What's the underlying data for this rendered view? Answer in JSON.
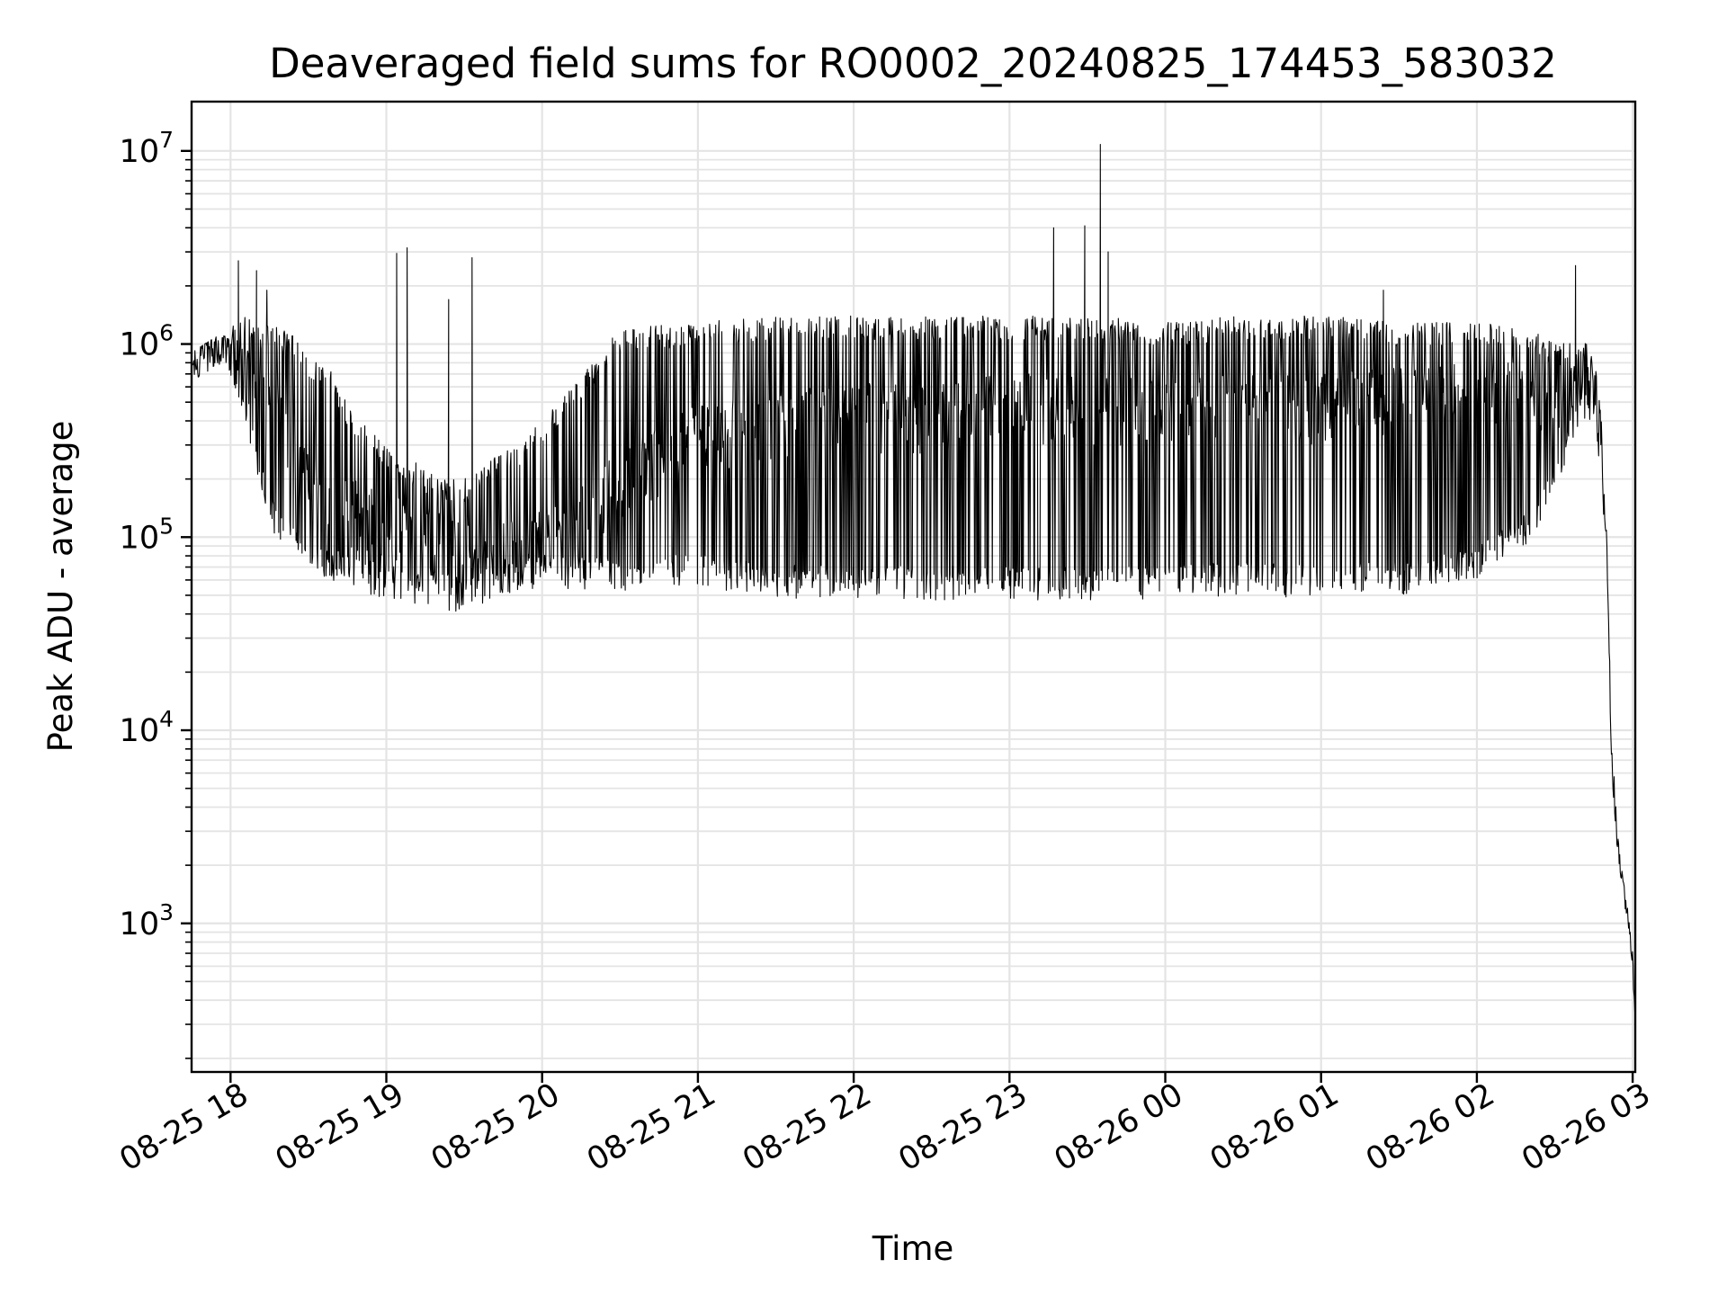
{
  "chart_data": {
    "type": "line",
    "title": "Deaveraged field sums for RO0002_20240825_174453_583032",
    "xlabel": "Time",
    "ylabel": "Peak ADU - average",
    "yscale": "log",
    "grid": "on (major and minor)",
    "x_tick_labels": [
      "08-25 18",
      "08-25 19",
      "08-25 20",
      "08-25 21",
      "08-25 22",
      "08-25 23",
      "08-26 00",
      "08-26 01",
      "08-26 02",
      "08-26 03"
    ],
    "x_tick_values": [
      "2024-08-25 18:00",
      "2024-08-25 19:00",
      "2024-08-25 20:00",
      "2024-08-25 21:00",
      "2024-08-25 22:00",
      "2024-08-25 23:00",
      "2024-08-26 00:00",
      "2024-08-26 01:00",
      "2024-08-26 02:00",
      "2024-08-26 03:00"
    ],
    "y_tick_labels": [
      {
        "base": "10",
        "exp": "3",
        "value": 1000
      },
      {
        "base": "10",
        "exp": "4",
        "value": 10000
      },
      {
        "base": "10",
        "exp": "5",
        "value": 100000
      },
      {
        "base": "10",
        "exp": "6",
        "value": 1000000
      },
      {
        "base": "10",
        "exp": "7",
        "value": 10000000
      }
    ],
    "xlim": [
      "2024-08-25 17:45",
      "2024-08-26 03:01"
    ],
    "ylim": [
      170,
      18000000
    ],
    "line_color": "#000000",
    "series": [
      {
        "x": [
          "2024-08-25 17:45",
          "2024-08-25 17:50",
          "2024-08-25 17:55",
          "2024-08-25 18:00",
          "2024-08-25 18:05",
          "2024-08-25 18:10",
          "2024-08-25 18:15",
          "2024-08-25 18:20",
          "2024-08-25 18:25",
          "2024-08-25 18:30",
          "2024-08-25 18:35",
          "2024-08-25 18:40",
          "2024-08-25 18:45",
          "2024-08-25 18:50",
          "2024-08-25 18:55",
          "2024-08-25 19:00",
          "2024-08-25 19:10",
          "2024-08-25 19:20",
          "2024-08-25 19:30",
          "2024-08-25 19:40",
          "2024-08-25 19:50",
          "2024-08-25 20:00",
          "2024-08-25 20:30",
          "2024-08-25 21:00",
          "2024-08-25 21:30",
          "2024-08-25 22:00",
          "2024-08-25 22:30",
          "2024-08-25 23:00",
          "2024-08-25 23:30",
          "2024-08-26 00:00",
          "2024-08-26 00:30",
          "2024-08-26 01:00",
          "2024-08-26 01:30",
          "2024-08-26 02:00",
          "2024-08-26 02:20",
          "2024-08-26 02:30",
          "2024-08-26 02:40",
          "2024-08-26 02:45",
          "2024-08-26 02:48",
          "2024-08-26 02:50",
          "2024-08-26 02:52",
          "2024-08-26 02:54",
          "2024-08-26 02:56",
          "2024-08-26 02:58",
          "2024-08-26 03:00",
          "2024-08-26 03:01"
        ],
        "y_upper": [
          900000,
          1000000,
          1100000,
          1200000,
          1500000,
          1200000,
          1300000,
          1200000,
          1100000,
          900000,
          800000,
          700000,
          500000,
          400000,
          350000,
          300000,
          250000,
          200000,
          200000,
          250000,
          300000,
          400000,
          1200000,
          1300000,
          1400000,
          1400000,
          1400000,
          1400000,
          1400000,
          1300000,
          1400000,
          1400000,
          1300000,
          1300000,
          1200000,
          1000000,
          1100000,
          900000,
          400000,
          100000,
          10000,
          3000,
          1800,
          1200,
          700,
          300
        ],
        "y_lower": [
          650000,
          700000,
          800000,
          700000,
          450000,
          200000,
          110000,
          90000,
          75000,
          65000,
          60000,
          58000,
          55000,
          52000,
          50000,
          48000,
          45000,
          42000,
          40000,
          48000,
          50000,
          55000,
          52000,
          55000,
          48000,
          48000,
          47000,
          48000,
          46000,
          48000,
          50000,
          48000,
          50000,
          60000,
          90000,
          150000,
          400000,
          400000,
          200000,
          60000,
          6000,
          2500,
          1500,
          1000,
          600,
          280
        ],
        "y_typical": [
          750000,
          850000,
          950000,
          900000,
          700000,
          600000,
          500000,
          400000,
          300000,
          250000,
          200000,
          180000,
          150000,
          140000,
          130000,
          120000,
          110000,
          100000,
          90000,
          80000,
          90000,
          100000,
          200000,
          350000,
          400000,
          450000,
          450000,
          500000,
          500000,
          480000,
          500000,
          500000,
          550000,
          600000,
          600000,
          500000,
          700000,
          800000,
          500000,
          200000,
          3000,
          2800,
          1500,
          1000,
          650,
          290
        ],
        "spikes": [
          {
            "x": "2024-08-25 18:03",
            "y": 2700000
          },
          {
            "x": "2024-08-25 18:10",
            "y": 2400000
          },
          {
            "x": "2024-08-25 18:14",
            "y": 1900000
          },
          {
            "x": "2024-08-25 19:04",
            "y": 2950000
          },
          {
            "x": "2024-08-25 19:08",
            "y": 3150000
          },
          {
            "x": "2024-08-25 19:24",
            "y": 1700000
          },
          {
            "x": "2024-08-25 19:33",
            "y": 2800000
          },
          {
            "x": "2024-08-25 23:17",
            "y": 4000000
          },
          {
            "x": "2024-08-25 23:29",
            "y": 4100000
          },
          {
            "x": "2024-08-25 23:35",
            "y": 10800000
          },
          {
            "x": "2024-08-25 23:38",
            "y": 3000000
          },
          {
            "x": "2024-08-26 01:24",
            "y": 1900000
          },
          {
            "x": "2024-08-26 02:38",
            "y": 2550000
          }
        ]
      }
    ]
  }
}
